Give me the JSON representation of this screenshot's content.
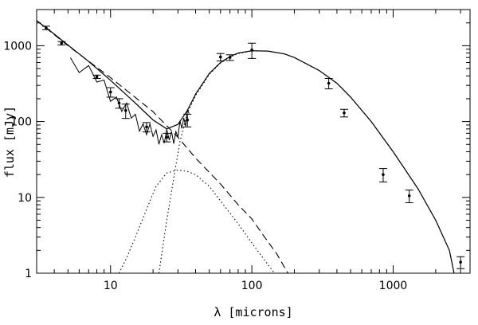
{
  "chart_data": {
    "type": "scatter",
    "xlabel": "λ [microns]",
    "ylabel": "flux [mJy]",
    "xscale": "log",
    "yscale": "log",
    "xlim": [
      3,
      3500
    ],
    "ylim": [
      1,
      3000
    ],
    "xticks": [
      {
        "value": 10,
        "label": "10"
      },
      {
        "value": 100,
        "label": "100"
      },
      {
        "value": 1000,
        "label": "1000"
      }
    ],
    "yticks": [
      {
        "value": 1,
        "label": "1"
      },
      {
        "value": 10,
        "label": "10"
      },
      {
        "value": 100,
        "label": "100"
      },
      {
        "value": 1000,
        "label": "1000"
      }
    ],
    "grid": false,
    "points": [
      {
        "x": 3.5,
        "y": 1720,
        "err": 90
      },
      {
        "x": 4.5,
        "y": 1080,
        "err": 55
      },
      {
        "x": 8.0,
        "y": 390,
        "err": 20
      },
      {
        "x": 10.0,
        "y": 245,
        "err": 35
      },
      {
        "x": 11.5,
        "y": 175,
        "err": 25
      },
      {
        "x": 12.8,
        "y": 140,
        "err": 30
      },
      {
        "x": 18.0,
        "y": 85,
        "err": 12
      },
      {
        "x": 25.0,
        "y": 62,
        "err": 8
      },
      {
        "x": 35.0,
        "y": 105,
        "err": 20
      },
      {
        "x": 60.0,
        "y": 710,
        "err": 80
      },
      {
        "x": 70.0,
        "y": 700,
        "err": 60
      },
      {
        "x": 100.0,
        "y": 880,
        "err": 200
      },
      {
        "x": 350.0,
        "y": 320,
        "err": 50
      },
      {
        "x": 450.0,
        "y": 130,
        "err": 15
      },
      {
        "x": 850.0,
        "y": 20,
        "err": 4
      },
      {
        "x": 1300.0,
        "y": 10.5,
        "err": 2
      },
      {
        "x": 3000.0,
        "y": 1.4,
        "err": 0.25
      }
    ],
    "spectrum": [
      [
        5.2,
        640
      ],
      [
        6,
        520
      ],
      [
        7,
        430
      ],
      [
        8,
        360
      ],
      [
        9,
        300
      ],
      [
        10,
        235
      ],
      [
        11,
        195
      ],
      [
        12,
        160
      ],
      [
        13,
        138
      ],
      [
        14,
        120
      ],
      [
        15,
        106
      ],
      [
        16,
        95
      ],
      [
        17,
        86
      ],
      [
        18,
        79
      ],
      [
        19,
        73
      ],
      [
        20,
        69
      ],
      [
        21,
        66
      ],
      [
        22,
        64
      ],
      [
        23,
        62
      ],
      [
        24,
        61
      ],
      [
        25,
        62
      ],
      [
        26,
        62
      ],
      [
        27,
        63
      ],
      [
        28,
        65
      ],
      [
        29,
        68
      ],
      [
        30,
        73
      ],
      [
        31,
        80
      ],
      [
        32,
        88
      ],
      [
        33,
        95
      ],
      [
        34,
        110
      ],
      [
        35,
        130
      ],
      [
        36,
        150
      ]
    ],
    "model_total": [
      [
        3,
        2150
      ],
      [
        4,
        1420
      ],
      [
        5,
        1020
      ],
      [
        7,
        620
      ],
      [
        10,
        350
      ],
      [
        15,
        175
      ],
      [
        20,
        105
      ],
      [
        25,
        80
      ],
      [
        30,
        92
      ],
      [
        35,
        140
      ],
      [
        40,
        230
      ],
      [
        50,
        430
      ],
      [
        60,
        600
      ],
      [
        70,
        720
      ],
      [
        80,
        800
      ],
      [
        100,
        860
      ],
      [
        130,
        850
      ],
      [
        170,
        780
      ],
      [
        200,
        700
      ],
      [
        300,
        470
      ],
      [
        400,
        320
      ],
      [
        500,
        210
      ],
      [
        700,
        100
      ],
      [
        1000,
        40
      ],
      [
        1500,
        13
      ],
      [
        2000,
        5
      ],
      [
        2500,
        2
      ],
      [
        2700,
        1
      ]
    ],
    "model_powerlaw": [
      [
        3,
        2150
      ],
      [
        5,
        1000
      ],
      [
        10,
        380
      ],
      [
        20,
        135
      ],
      [
        30,
        62
      ],
      [
        40,
        33
      ],
      [
        60,
        15
      ],
      [
        80,
        8
      ],
      [
        100,
        5.2
      ],
      [
        120,
        3.2
      ],
      [
        150,
        1.8
      ],
      [
        180,
        1
      ]
    ],
    "model_hot_dust": [
      [
        11.5,
        1
      ],
      [
        13,
        1.6
      ],
      [
        15,
        3
      ],
      [
        18,
        7
      ],
      [
        21,
        14
      ],
      [
        25,
        21
      ],
      [
        30,
        23
      ],
      [
        35,
        22
      ],
      [
        40,
        20
      ],
      [
        50,
        14
      ],
      [
        60,
        9
      ],
      [
        80,
        4.5
      ],
      [
        100,
        2.5
      ],
      [
        130,
        1.3
      ],
      [
        145,
        1
      ]
    ],
    "model_cold_dust": [
      [
        22,
        1
      ],
      [
        25,
        5
      ],
      [
        28,
        18
      ],
      [
        31,
        55
      ],
      [
        35,
        130
      ],
      [
        40,
        220
      ],
      [
        50,
        420
      ],
      [
        60,
        590
      ],
      [
        70,
        710
      ],
      [
        80,
        790
      ],
      [
        100,
        850
      ],
      [
        130,
        850
      ],
      [
        170,
        780
      ],
      [
        200,
        700
      ],
      [
        300,
        470
      ],
      [
        400,
        320
      ],
      [
        500,
        210
      ],
      [
        700,
        100
      ],
      [
        1000,
        40
      ],
      [
        1500,
        13
      ],
      [
        2000,
        5
      ],
      [
        2500,
        2
      ],
      [
        2700,
        1
      ]
    ]
  }
}
